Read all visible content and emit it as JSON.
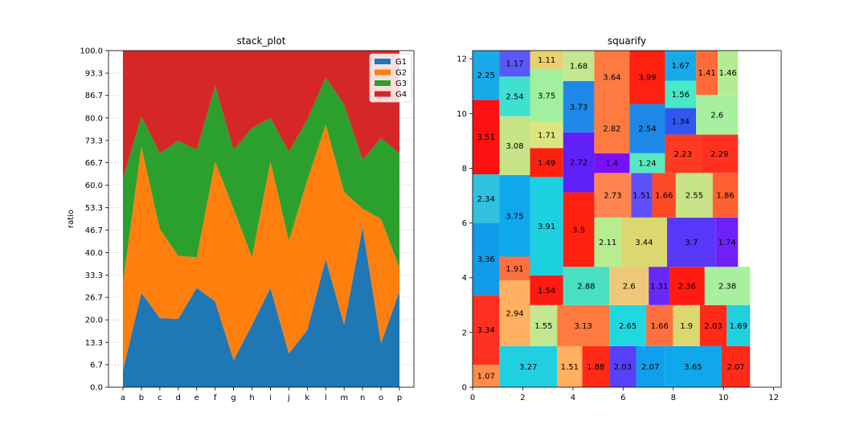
{
  "colors": {
    "G1": "#1f77b4",
    "G2": "#ff7f0e",
    "G3": "#2ca02c",
    "G4": "#d62728",
    "grid": "#e6e6e6"
  },
  "chart_data": [
    {
      "type": "area",
      "title": "stack_plot",
      "xlabel": "",
      "ylabel": "ratio",
      "categories": [
        "a",
        "b",
        "c",
        "d",
        "e",
        "f",
        "g",
        "h",
        "i",
        "j",
        "k",
        "l",
        "m",
        "n",
        "o",
        "p"
      ],
      "yticks": [
        "0.0",
        "6.7",
        "13.3",
        "20.0",
        "26.7",
        "33.3",
        "40.0",
        "46.7",
        "53.3",
        "60.0",
        "66.7",
        "73.3",
        "80.0",
        "86.7",
        "93.3",
        "100.0"
      ],
      "ylim": [
        0,
        100
      ],
      "grid": true,
      "legend_position": "top-right",
      "series": [
        {
          "name": "G1",
          "values": [
            5,
            28,
            20.5,
            20.3,
            29.5,
            25.5,
            8,
            18.5,
            29.5,
            10,
            17,
            38,
            18.5,
            47.5,
            13,
            28.5
          ]
        },
        {
          "name": "G2",
          "values": [
            26,
            43.5,
            26.5,
            18.7,
            9.1,
            41.5,
            45,
            20.1,
            37.5,
            33.5,
            44.5,
            40,
            39.5,
            5.5,
            37,
            7
          ]
        },
        {
          "name": "G3",
          "values": [
            31,
            9,
            22.5,
            34.2,
            31.9,
            22.5,
            17.5,
            38.4,
            13,
            26.5,
            18,
            14,
            26,
            14.5,
            24,
            34
          ]
        },
        {
          "name": "G4",
          "values": [
            38,
            19.5,
            30.5,
            26.8,
            29.5,
            10.5,
            29.5,
            23,
            20,
            30,
            20.5,
            8,
            16,
            32.5,
            26,
            30.5
          ]
        }
      ]
    },
    {
      "type": "treemap",
      "title": "squarify",
      "xlabel": "",
      "ylabel": "",
      "xlim": [
        0,
        12.3
      ],
      "ylim": [
        0,
        12.3
      ],
      "xticks": [
        "0",
        "2",
        "4",
        "6",
        "8",
        "10",
        "12"
      ],
      "yticks": [
        "0",
        "2",
        "4",
        "6",
        "8",
        "10",
        "12"
      ],
      "rects": [
        {
          "label": "1.07",
          "x": 0,
          "y": 0,
          "w": 1.07,
          "h": 0.82,
          "color": "#ff8c4a"
        },
        {
          "label": "3.34",
          "x": 0,
          "y": 0.82,
          "w": 1.07,
          "h": 2.55,
          "color": "#ff3020"
        },
        {
          "label": "3.36",
          "x": 0,
          "y": 3.37,
          "w": 1.07,
          "h": 2.63,
          "color": "#109ce8"
        },
        {
          "label": "2.34",
          "x": 0,
          "y": 6.0,
          "w": 1.07,
          "h": 1.78,
          "color": "#30c2e0"
        },
        {
          "label": "3.51",
          "x": 0,
          "y": 7.78,
          "w": 1.07,
          "h": 2.72,
          "color": "#ff1010"
        },
        {
          "label": "2.25",
          "x": 0,
          "y": 10.5,
          "w": 1.07,
          "h": 1.8,
          "color": "#18aae8"
        },
        {
          "label": "3.27",
          "x": 1.07,
          "y": 0,
          "w": 2.3,
          "h": 1.5,
          "color": "#20d0e0"
        },
        {
          "label": "2.94",
          "x": 1.07,
          "y": 1.5,
          "w": 1.22,
          "h": 2.4,
          "color": "#ffb060"
        },
        {
          "label": "1.91",
          "x": 1.07,
          "y": 3.9,
          "w": 1.22,
          "h": 0.87,
          "color": "#ff7040"
        },
        {
          "label": "3.75",
          "x": 1.07,
          "y": 4.77,
          "w": 1.22,
          "h": 2.98,
          "color": "#10a8ec"
        },
        {
          "label": "3.08",
          "x": 1.07,
          "y": 7.75,
          "w": 1.22,
          "h": 2.15,
          "color": "#c8e488"
        },
        {
          "label": "2.54",
          "x": 1.07,
          "y": 9.9,
          "w": 1.22,
          "h": 1.45,
          "color": "#40e0d0"
        },
        {
          "label": "1.17",
          "x": 1.07,
          "y": 11.35,
          "w": 1.22,
          "h": 0.95,
          "color": "#5a58f8"
        },
        {
          "label": "1.55",
          "x": 2.29,
          "y": 1.5,
          "w": 1.08,
          "h": 1.5,
          "color": "#c4e890"
        },
        {
          "label": "1.54",
          "x": 2.29,
          "y": 3.0,
          "w": 1.32,
          "h": 1.08,
          "color": "#ff1a12"
        },
        {
          "label": "3.91",
          "x": 2.29,
          "y": 4.08,
          "w": 1.32,
          "h": 3.6,
          "color": "#1cd0e0"
        },
        {
          "label": "1.49",
          "x": 2.29,
          "y": 7.68,
          "w": 1.32,
          "h": 1.06,
          "color": "#ff2010"
        },
        {
          "label": "1.71",
          "x": 2.29,
          "y": 8.74,
          "w": 1.32,
          "h": 0.95,
          "color": "#dce680"
        },
        {
          "label": "3.75",
          "x": 2.29,
          "y": 9.69,
          "w": 1.32,
          "h": 1.94,
          "color": "#a0f0a0"
        },
        {
          "label": "1.11",
          "x": 2.29,
          "y": 11.63,
          "w": 1.32,
          "h": 0.67,
          "color": "#e8d070"
        },
        {
          "label": "1.51",
          "x": 3.37,
          "y": 0,
          "w": 1.0,
          "h": 1.5,
          "color": "#ffb060"
        },
        {
          "label": "1.88",
          "x": 4.37,
          "y": 0,
          "w": 1.08,
          "h": 1.5,
          "color": "#ff2a18"
        },
        {
          "label": "3.13",
          "x": 3.37,
          "y": 1.5,
          "w": 2.08,
          "h": 1.5,
          "color": "#ff7a40"
        },
        {
          "label": "2.88",
          "x": 3.61,
          "y": 3.0,
          "w": 1.84,
          "h": 1.4,
          "color": "#48e0c0"
        },
        {
          "label": "3.5",
          "x": 3.61,
          "y": 4.4,
          "w": 1.24,
          "h": 2.72,
          "color": "#ff2010"
        },
        {
          "label": "2.72",
          "x": 3.61,
          "y": 7.12,
          "w": 1.24,
          "h": 2.19,
          "color": "#6020f8"
        },
        {
          "label": "3.73",
          "x": 3.61,
          "y": 9.31,
          "w": 1.24,
          "h": 1.88,
          "color": "#1e88e8"
        },
        {
          "label": "1.68",
          "x": 3.61,
          "y": 11.19,
          "w": 1.24,
          "h": 1.11,
          "color": "#c4e890"
        },
        {
          "label": "2.03",
          "x": 5.45,
          "y": 0,
          "w": 1.07,
          "h": 1.5,
          "color": "#5840f8"
        },
        {
          "label": "2.07",
          "x": 6.52,
          "y": 0,
          "w": 1.13,
          "h": 1.5,
          "color": "#0ea0ec"
        },
        {
          "label": "3.65",
          "x": 7.65,
          "y": 0,
          "w": 2.28,
          "h": 1.5,
          "color": "#10a8ec"
        },
        {
          "label": "2.07",
          "x": 9.93,
          "y": 0,
          "w": 1.13,
          "h": 1.5,
          "color": "#ff2a18"
        },
        {
          "label": "2.65",
          "x": 5.45,
          "y": 1.5,
          "w": 1.47,
          "h": 1.5,
          "color": "#20d8e0"
        },
        {
          "label": "1.66",
          "x": 6.92,
          "y": 1.5,
          "w": 1.07,
          "h": 1.5,
          "color": "#ff7040"
        },
        {
          "label": "1.9",
          "x": 7.99,
          "y": 1.5,
          "w": 1.07,
          "h": 1.5,
          "color": "#dcd870"
        },
        {
          "label": "2.03",
          "x": 9.06,
          "y": 1.5,
          "w": 1.07,
          "h": 1.5,
          "color": "#ff2a18"
        },
        {
          "label": "1.69",
          "x": 10.13,
          "y": 1.5,
          "w": 0.93,
          "h": 1.5,
          "color": "#20d0e0"
        },
        {
          "label": "2.6",
          "x": 5.45,
          "y": 3.0,
          "w": 1.57,
          "h": 1.4,
          "color": "#eec878"
        },
        {
          "label": "1.31",
          "x": 7.02,
          "y": 3.0,
          "w": 0.83,
          "h": 1.4,
          "color": "#6a28f8"
        },
        {
          "label": "2.36",
          "x": 7.85,
          "y": 3.0,
          "w": 1.4,
          "h": 1.4,
          "color": "#ff1a12"
        },
        {
          "label": "2.38",
          "x": 9.25,
          "y": 3.0,
          "w": 1.81,
          "h": 1.4,
          "color": "#a8f0a0"
        },
        {
          "label": "2.11",
          "x": 4.85,
          "y": 4.4,
          "w": 1.07,
          "h": 1.8,
          "color": "#b8ec90"
        },
        {
          "label": "3.44",
          "x": 5.92,
          "y": 4.4,
          "w": 1.83,
          "h": 1.8,
          "color": "#dcd870"
        },
        {
          "label": "3.7",
          "x": 7.75,
          "y": 4.4,
          "w": 1.95,
          "h": 1.8,
          "color": "#5838f8"
        },
        {
          "label": "1.74",
          "x": 9.7,
          "y": 4.4,
          "w": 0.88,
          "h": 1.8,
          "color": "#7020f8"
        },
        {
          "label": "2.73",
          "x": 4.85,
          "y": 6.2,
          "w": 1.47,
          "h": 1.63,
          "color": "#ff8450"
        },
        {
          "label": "1.51",
          "x": 6.32,
          "y": 6.2,
          "w": 0.84,
          "h": 1.63,
          "color": "#5e50f8"
        },
        {
          "label": "1.66",
          "x": 7.16,
          "y": 6.2,
          "w": 0.94,
          "h": 1.63,
          "color": "#ff4a28"
        },
        {
          "label": "2.55",
          "x": 8.1,
          "y": 6.2,
          "w": 1.47,
          "h": 1.63,
          "color": "#c8e488"
        },
        {
          "label": "1.86",
          "x": 9.57,
          "y": 6.2,
          "w": 1.01,
          "h": 1.63,
          "color": "#ff6030"
        },
        {
          "label": "1.4",
          "x": 4.85,
          "y": 7.83,
          "w": 1.41,
          "h": 0.72,
          "color": "#7a10f8"
        },
        {
          "label": "1.24",
          "x": 6.26,
          "y": 7.83,
          "w": 1.41,
          "h": 0.72,
          "color": "#58e8c0"
        },
        {
          "label": "2.23",
          "x": 7.67,
          "y": 7.83,
          "w": 1.43,
          "h": 1.4,
          "color": "#ff3a20"
        },
        {
          "label": "2.29",
          "x": 9.1,
          "y": 7.83,
          "w": 1.48,
          "h": 1.4,
          "color": "#ff3020"
        },
        {
          "label": "2.82",
          "x": 4.85,
          "y": 8.55,
          "w": 1.41,
          "h": 1.8,
          "color": "#ff7a40"
        },
        {
          "label": "2.54",
          "x": 6.26,
          "y": 8.55,
          "w": 1.41,
          "h": 1.8,
          "color": "#1e88e8"
        },
        {
          "label": "3.64",
          "x": 4.85,
          "y": 10.35,
          "w": 1.41,
          "h": 1.95,
          "color": "#ff7a40"
        },
        {
          "label": "3.99",
          "x": 6.26,
          "y": 10.35,
          "w": 1.41,
          "h": 1.95,
          "color": "#ff2010"
        },
        {
          "label": "1.34",
          "x": 7.67,
          "y": 9.23,
          "w": 1.24,
          "h": 0.97,
          "color": "#3058f0"
        },
        {
          "label": "2.6",
          "x": 8.91,
          "y": 9.23,
          "w": 1.67,
          "h": 1.45,
          "color": "#a8f0a0"
        },
        {
          "label": "1.56",
          "x": 7.67,
          "y": 10.2,
          "w": 1.24,
          "h": 1.0,
          "color": "#48e8c8"
        },
        {
          "label": "1.67",
          "x": 7.67,
          "y": 11.2,
          "w": 1.24,
          "h": 1.1,
          "color": "#18aae8"
        },
        {
          "label": "1.41",
          "x": 8.91,
          "y": 10.68,
          "w": 0.86,
          "h": 1.62,
          "color": "#ff6a38"
        },
        {
          "label": "1.46",
          "x": 9.77,
          "y": 10.68,
          "w": 0.81,
          "h": 1.62,
          "color": "#b4ec94"
        }
      ]
    }
  ]
}
